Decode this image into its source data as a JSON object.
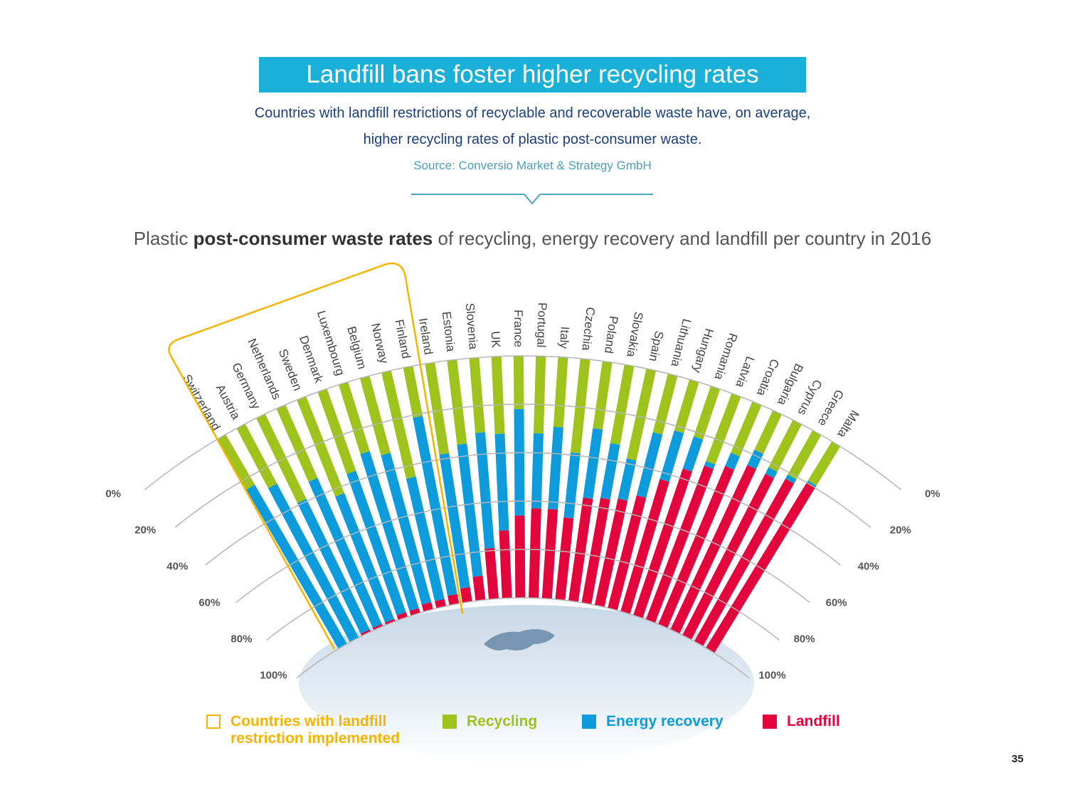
{
  "header": {
    "title": "Landfill bans foster higher recycling rates",
    "subtitle_line1": "Countries with landfill restrictions of recyclable and recoverable waste have, on average,",
    "subtitle_line2": "higher recycling rates of plastic post-consumer waste.",
    "source": "Source: Conversio Market & Strategy GmbH"
  },
  "chart_heading": {
    "before": "Plastic ",
    "bold": "post-consumer waste rates",
    "after": " of recycling, energy recovery and landfill per country in 2016"
  },
  "chart_data": {
    "type": "bar",
    "layout": "radial stacked bar (fan), 100% stacked",
    "title": "Plastic post-consumer waste rates of recycling, energy recovery and landfill per country in 2016",
    "categories": [
      "Switzerland",
      "Austria",
      "Germany",
      "Netherlands",
      "Sweden",
      "Denmark",
      "Luxembourg",
      "Belgium",
      "Norway",
      "Finland",
      "Ireland",
      "Estonia",
      "Slovenia",
      "UK",
      "France",
      "Portugal",
      "Italy",
      "Czechia",
      "Poland",
      "Slovakia",
      "Spain",
      "Lithuania",
      "Hungary",
      "Romania",
      "Latvia",
      "Croatia",
      "Bulgaria",
      "Cyprus",
      "Greece",
      "Malta"
    ],
    "landfill_restriction": [
      true,
      true,
      true,
      true,
      true,
      true,
      true,
      true,
      true,
      true,
      false,
      false,
      false,
      false,
      false,
      false,
      false,
      false,
      false,
      false,
      false,
      false,
      false,
      false,
      false,
      false,
      false,
      false,
      false,
      false
    ],
    "series": [
      {
        "name": "Recycling",
        "color": "#9dc31c",
        "values": [
          24,
          28,
          39,
          33,
          43,
          36,
          30,
          33,
          45,
          21,
          38,
          35,
          31,
          32,
          22,
          32,
          29,
          39,
          28,
          33,
          38,
          25,
          22,
          22,
          30,
          23,
          18,
          22,
          21,
          19
        ]
      },
      {
        "name": "Energy recovery",
        "color": "#0d9bdb",
        "values": [
          76,
          72,
          60,
          66,
          56,
          62,
          68,
          64,
          52,
          75,
          56,
          55,
          48,
          40,
          44,
          31,
          34,
          27,
          29,
          23,
          17,
          27,
          21,
          14,
          2,
          6,
          7,
          3,
          2,
          1
        ]
      },
      {
        "name": "Landfill",
        "color": "#e2063c",
        "values": [
          0,
          0,
          1,
          1,
          1,
          2,
          2,
          3,
          3,
          4,
          6,
          10,
          21,
          28,
          34,
          37,
          37,
          34,
          43,
          44,
          45,
          48,
          57,
          64,
          68,
          71,
          75,
          75,
          77,
          80
        ]
      }
    ],
    "axis_ticks": [
      "0%",
      "20%",
      "40%",
      "60%",
      "80%",
      "100%"
    ],
    "ylim": [
      0,
      100
    ],
    "grid": true,
    "highlight_color": "#f5b400"
  },
  "legend": {
    "restriction_line1": "Countries with landfill",
    "restriction_line2": "restriction implemented",
    "recycling": "Recycling",
    "energy": "Energy recovery",
    "landfill": "Landfill"
  },
  "page_number": "35"
}
